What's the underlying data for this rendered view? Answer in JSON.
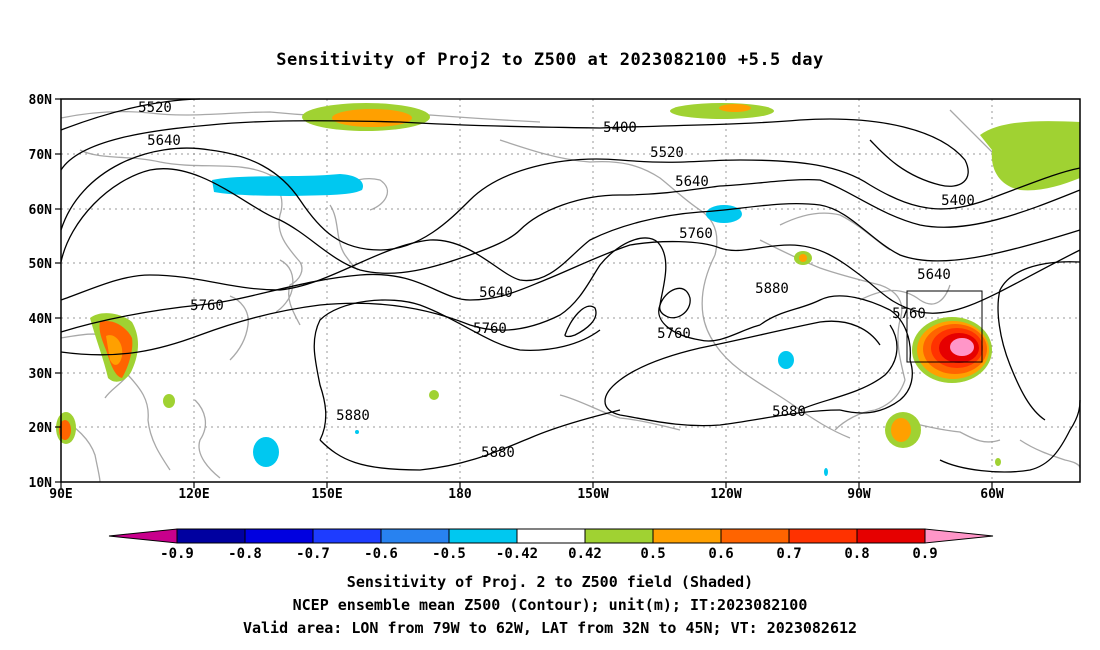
{
  "title": "Sensitivity of Proj2 to Z500 at 2023082100 +5.5 day",
  "lat_labels": [
    "80N",
    "70N",
    "60N",
    "50N",
    "40N",
    "30N",
    "20N",
    "10N"
  ],
  "lon_labels": [
    "90E",
    "120E",
    "150E",
    "180",
    "150W",
    "120W",
    "90W",
    "60W"
  ],
  "contour_labels": [
    {
      "text": "5520",
      "key": "a"
    },
    {
      "text": "5640",
      "key": "b"
    },
    {
      "text": "5760",
      "key": "c"
    },
    {
      "text": "5400",
      "key": "d"
    },
    {
      "text": "5520",
      "key": "e"
    },
    {
      "text": "5640",
      "key": "f"
    },
    {
      "text": "5760",
      "key": "g"
    },
    {
      "text": "5640",
      "key": "h"
    },
    {
      "text": "5760",
      "key": "i"
    },
    {
      "text": "5760",
      "key": "j"
    },
    {
      "text": "5880",
      "key": "k"
    },
    {
      "text": "5880",
      "key": "l"
    },
    {
      "text": "5880",
      "key": "m"
    },
    {
      "text": "5880",
      "key": "n"
    },
    {
      "text": "5400",
      "key": "o"
    },
    {
      "text": "5640",
      "key": "p"
    },
    {
      "text": "5760",
      "key": "q"
    }
  ],
  "colorbar": {
    "labels": [
      "-0.9",
      "-0.8",
      "-0.7",
      "-0.6",
      "-0.5",
      "-0.42",
      "0.42",
      "0.5",
      "0.6",
      "0.7",
      "0.8",
      "0.9"
    ],
    "colors": [
      "#0000a0",
      "#0000e0",
      "#1e3cff",
      "#2882f0",
      "#00c8f0",
      "#ffffff",
      "#a0d232",
      "#ffa000",
      "#ff6400",
      "#ff3200",
      "#e60000"
    ],
    "low_end_color": "#c8008c",
    "high_end_color": "#ff96c8"
  },
  "valid_area": {
    "lon_from": "79W",
    "lon_to": "62W",
    "lat_from": "32N",
    "lat_to": "45N"
  },
  "captions": [
    "Sensitivity of Proj. 2 to Z500 field (Shaded)",
    "NCEP ensemble mean Z500 (Contour); unit(m); IT:2023082100",
    "Valid area: LON from 79W to 62W, LAT from 32N to 45N; VT: 2023082612"
  ]
}
